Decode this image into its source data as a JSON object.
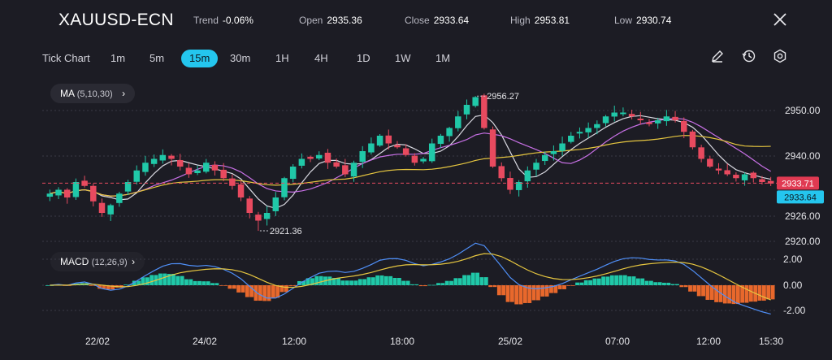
{
  "header": {
    "symbol": "XAUUSD-ECN",
    "stats": [
      {
        "key": "Trend",
        "value": "-0.06%"
      },
      {
        "key": "Open",
        "value": "2935.36"
      },
      {
        "key": "Close",
        "value": "2933.64"
      },
      {
        "key": "High",
        "value": "2953.81"
      },
      {
        "key": "Low",
        "value": "2930.74"
      }
    ],
    "close_icon": "close-icon"
  },
  "timeframes": [
    "Tick Chart",
    "1m",
    "5m",
    "15m",
    "30m",
    "1H",
    "4H",
    "1D",
    "1W",
    "1M"
  ],
  "active_timeframe": "15m",
  "tools": [
    "pencil-icon",
    "history-icon",
    "settings-icon"
  ],
  "ma_label": {
    "name": "MA",
    "params": "(5,10,30)"
  },
  "macd_label": {
    "name": "MACD",
    "params": "(12,26,9)"
  },
  "colors": {
    "up": "#20c8a8",
    "down": "#e84a5f",
    "macd": "#4f8ff7",
    "signal": "#e6c640",
    "ma5": "#d8d8e0",
    "ma10": "#c870e6",
    "ma30": "#e6c640",
    "hist_neg": "#e8682c",
    "accent": "#24c6ee"
  },
  "chart_data": {
    "type": "candlestick",
    "price_axis": {
      "ticks": [
        "2950.00",
        "2940.00",
        "2926.00",
        "2920.00"
      ],
      "ylim": [
        2918,
        2958
      ]
    },
    "macd_axis": {
      "ticks": [
        "2.00",
        "0.00",
        "-2.00"
      ]
    },
    "x_ticks": [
      "22/02",
      "24/02",
      "12:00",
      "18:00",
      "25/02",
      "07:00",
      "12:00",
      "15:30"
    ],
    "high_marker": "2956.27",
    "low_marker": "2921.36",
    "last_price_red": "2933.71",
    "last_price_cyan": "2933.64",
    "closes": [
      2931,
      2932,
      2930,
      2934,
      2933,
      2929,
      2926,
      2928,
      2931,
      2934,
      2937,
      2939,
      2940,
      2941,
      2940,
      2938,
      2936,
      2937,
      2939,
      2937,
      2935,
      2933,
      2930,
      2926,
      2924,
      2926,
      2930,
      2935,
      2938,
      2940,
      2940,
      2941,
      2939,
      2938,
      2936,
      2939,
      2942,
      2944,
      2946,
      2944,
      2943,
      2941,
      2939,
      2940,
      2944,
      2946,
      2948,
      2951,
      2954,
      2956,
      2948,
      2938,
      2935,
      2932,
      2934,
      2937,
      2939,
      2941,
      2942,
      2944,
      2946,
      2947,
      2948,
      2949,
      2951,
      2952,
      2952,
      2951,
      2950,
      2949,
      2950,
      2951,
      2950,
      2947,
      2943,
      2940,
      2938,
      2937,
      2936,
      2935,
      2936,
      2935,
      2934,
      2933.6
    ]
  }
}
